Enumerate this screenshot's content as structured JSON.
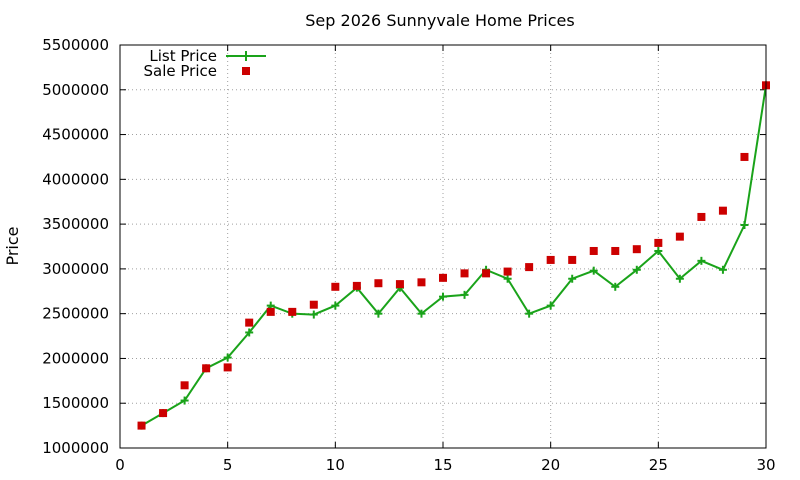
{
  "chart_data": {
    "type": "line",
    "title": "Sep 2026 Sunnyvale Home Prices",
    "xlabel": "",
    "ylabel": "Price",
    "xlim": [
      0,
      30
    ],
    "ylim": [
      1000000,
      5500000
    ],
    "xticks": [
      "0",
      "5",
      "10",
      "15",
      "20",
      "25",
      "30"
    ],
    "yticks": [
      "1000000",
      "1500000",
      "2000000",
      "2500000",
      "3000000",
      "3500000",
      "4000000",
      "4500000",
      "5000000",
      "5500000"
    ],
    "grid": true,
    "legend_position": "top-left",
    "x": [
      1,
      2,
      3,
      4,
      5,
      6,
      7,
      8,
      9,
      10,
      11,
      12,
      13,
      14,
      15,
      16,
      17,
      18,
      19,
      20,
      21,
      22,
      23,
      24,
      25,
      26,
      27,
      28,
      29,
      30
    ],
    "series": [
      {
        "name": "List Price",
        "style": "line-plus",
        "color": "#1aa31a",
        "values": [
          1250000,
          1390000,
          1530000,
          1890000,
          2010000,
          2290000,
          2590000,
          2500000,
          2490000,
          2590000,
          2790000,
          2500000,
          2790000,
          2500000,
          2690000,
          2710000,
          2990000,
          2890000,
          2500000,
          2590000,
          2890000,
          2980000,
          2800000,
          2990000,
          3200000,
          2890000,
          3090000,
          2990000,
          3490000,
          5050000
        ]
      },
      {
        "name": "Sale Price",
        "style": "square-points",
        "color": "#cc0000",
        "values": [
          1250000,
          1390000,
          1700000,
          1890000,
          1900000,
          2400000,
          2520000,
          2520000,
          2600000,
          2800000,
          2810000,
          2840000,
          2830000,
          2850000,
          2900000,
          2950000,
          2950000,
          2970000,
          3020000,
          3100000,
          3100000,
          3200000,
          3200000,
          3220000,
          3290000,
          3360000,
          3580000,
          3650000,
          4250000,
          5050000
        ]
      }
    ]
  }
}
